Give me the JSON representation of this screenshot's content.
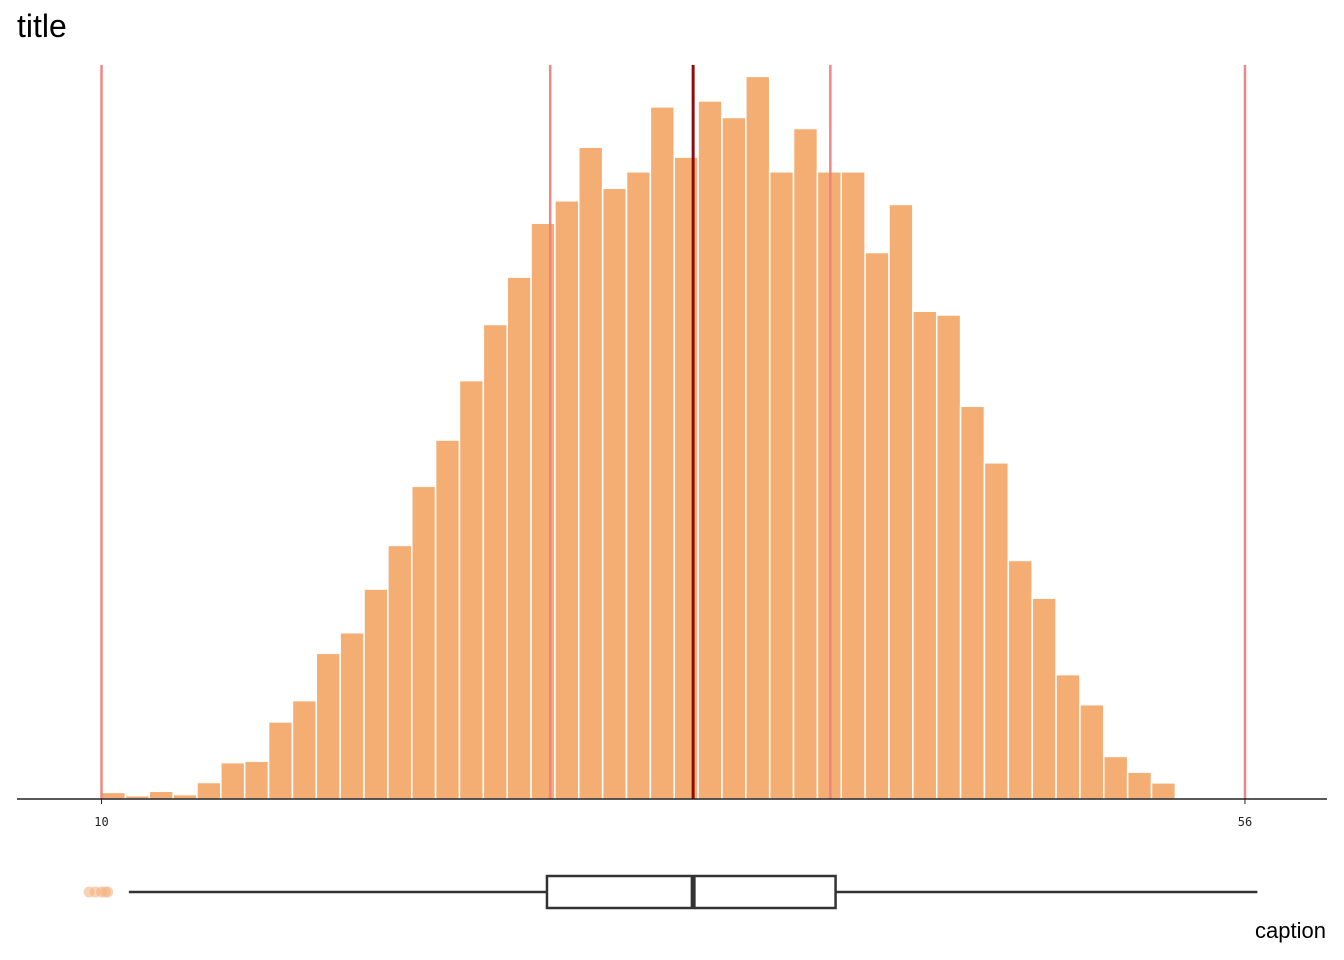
{
  "chart_data": {
    "type": "histogram",
    "title": "title",
    "caption": "caption",
    "xlabel": "",
    "ylabel": "",
    "xlim": [
      6.6,
      59.3
    ],
    "tick_labels": [
      {
        "value": 10,
        "label": "10"
      },
      {
        "value": 56,
        "label": "56"
      }
    ],
    "bin_width": 0.96,
    "bins_start": 10,
    "counts": [
      0.9,
      0.45,
      1.05,
      0.6,
      2.25,
      4.95,
      5.15,
      10.5,
      13.4,
      19.85,
      22.65,
      28.6,
      34.55,
      42.6,
      48.9,
      57.0,
      64.65,
      71.1,
      78.45,
      81.5,
      88.8,
      83.2,
      85.45,
      94.3,
      87.45,
      95.1,
      92.85,
      98.45,
      85.45,
      91.35,
      85.45,
      85.45,
      74.45,
      81.0,
      66.45,
      65.95,
      53.5,
      45.8,
      32.5,
      27.35,
      16.95,
      12.85,
      5.8,
      3.65,
      2.2,
      0.2,
      0.2,
      0.05
    ],
    "ymax": 100,
    "reference_lines": [
      {
        "value": 10.0,
        "color": "#f08080",
        "width": 2.5
      },
      {
        "value": 28.05,
        "color": "#f08080",
        "width": 2.5
      },
      {
        "value": 33.8,
        "color": "#8b0000",
        "width": 3
      },
      {
        "value": 39.32,
        "color": "#f08080",
        "width": 2.5
      },
      {
        "value": 56.0,
        "color": "#f08080",
        "width": 2.5
      }
    ],
    "boxplot": {
      "whisker_low": 11.1,
      "q1": 27.92,
      "median": 33.8,
      "q3": 39.53,
      "whisker_high": 56.5,
      "outliers": [
        9.5,
        9.75,
        10.0,
        10.15,
        10.25
      ]
    },
    "colors": {
      "bar_fill": "#f4ae73",
      "bar_stroke": "#ffffff",
      "axis": "#222222",
      "box_stroke": "#333333",
      "outlier": "#f4b482"
    }
  }
}
